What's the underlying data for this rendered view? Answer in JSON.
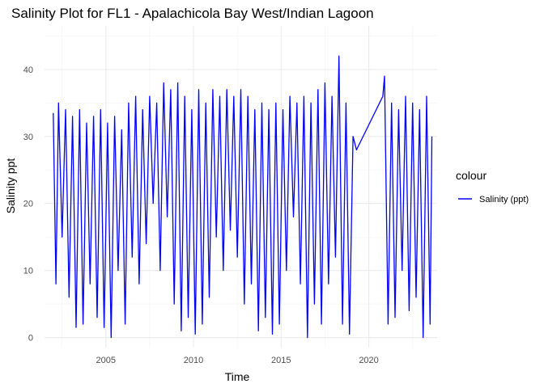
{
  "chart_data": {
    "type": "line",
    "title": "Salinity Plot for FL1 - Apalachicola Bay West/Indian Lagoon",
    "xlabel": "Time",
    "ylabel": "Salinity ppt",
    "xlim": [
      2001.5,
      2023.9
    ],
    "ylim": [
      -1.5,
      46.5
    ],
    "x_ticks": [
      2005,
      2010,
      2015,
      2020
    ],
    "y_ticks": [
      0,
      10,
      20,
      30,
      40
    ],
    "grid": true,
    "legend": {
      "title": "colour",
      "position": "right"
    },
    "series": [
      {
        "name": "Salinity (ppt)",
        "color": "#0000ff",
        "x": [
          2002.0,
          2002.15,
          2002.3,
          2002.5,
          2002.7,
          2002.9,
          2003.1,
          2003.3,
          2003.5,
          2003.7,
          2003.9,
          2004.1,
          2004.3,
          2004.5,
          2004.7,
          2004.9,
          2005.1,
          2005.3,
          2005.5,
          2005.7,
          2005.9,
          2006.1,
          2006.3,
          2006.5,
          2006.7,
          2006.9,
          2007.1,
          2007.3,
          2007.5,
          2007.7,
          2007.9,
          2008.1,
          2008.3,
          2008.5,
          2008.7,
          2008.9,
          2009.1,
          2009.3,
          2009.5,
          2009.7,
          2009.9,
          2010.1,
          2010.3,
          2010.5,
          2010.7,
          2010.9,
          2011.1,
          2011.3,
          2011.5,
          2011.7,
          2011.9,
          2012.1,
          2012.3,
          2012.5,
          2012.7,
          2012.9,
          2013.1,
          2013.3,
          2013.5,
          2013.7,
          2013.9,
          2014.1,
          2014.3,
          2014.5,
          2014.7,
          2014.9,
          2015.1,
          2015.3,
          2015.5,
          2015.7,
          2015.9,
          2016.1,
          2016.3,
          2016.5,
          2016.7,
          2016.9,
          2017.1,
          2017.3,
          2017.5,
          2017.7,
          2017.9,
          2018.1,
          2018.3,
          2018.5,
          2018.7,
          2018.9,
          2019.1,
          2019.3,
          2020.8,
          2020.9,
          2021.1,
          2021.3,
          2021.5,
          2021.7,
          2021.9,
          2022.1,
          2022.3,
          2022.5,
          2022.7,
          2022.9,
          2023.1,
          2023.3,
          2023.5,
          2023.6
        ],
        "y": [
          33.5,
          8,
          35,
          15,
          34,
          6,
          33,
          1.5,
          34,
          2,
          32,
          8,
          33,
          3,
          34,
          1.5,
          32,
          0,
          33,
          10,
          31,
          2,
          35,
          12,
          36,
          8,
          34,
          14,
          36,
          20,
          35,
          10,
          38,
          18,
          37,
          5,
          38,
          1,
          36,
          3,
          34,
          0.5,
          37,
          2,
          35,
          6,
          37,
          15,
          36,
          10,
          37,
          16,
          36,
          12,
          37,
          5,
          36,
          8,
          34,
          1,
          35,
          3,
          34,
          0.5,
          35,
          2,
          34,
          10,
          36,
          18,
          35,
          8,
          36,
          0,
          35,
          5,
          37,
          2,
          38,
          8,
          36,
          12,
          42,
          2,
          35,
          0.5,
          30,
          28,
          36,
          39,
          2,
          35,
          3,
          34,
          10,
          36,
          4,
          35,
          6,
          34,
          0,
          36,
          2,
          30
        ]
      }
    ]
  }
}
